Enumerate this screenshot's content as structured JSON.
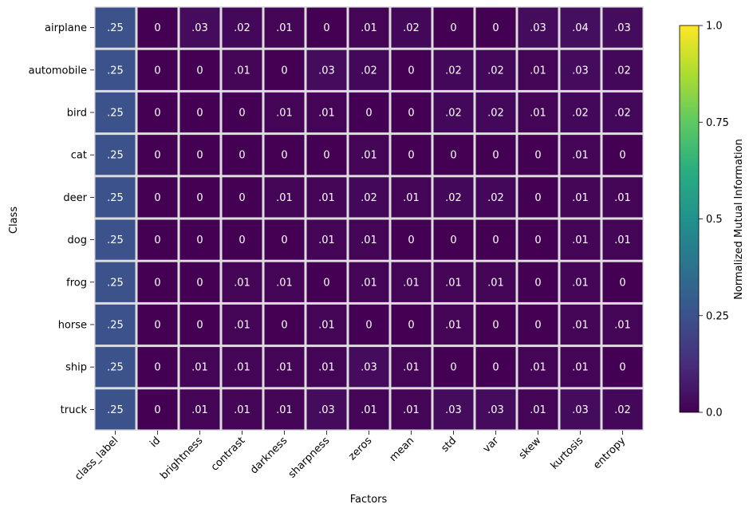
{
  "chart_data": {
    "type": "heatmap",
    "xlabel": "Factors",
    "ylabel": "Class",
    "x": [
      "class_label",
      "id",
      "brightness",
      "contrast",
      "darkness",
      "sharpness",
      "zeros",
      "mean",
      "std",
      "var",
      "skew",
      "kurtosis",
      "entropy"
    ],
    "y": [
      "airplane",
      "automobile",
      "bird",
      "cat",
      "deer",
      "dog",
      "frog",
      "horse",
      "ship",
      "truck"
    ],
    "values": [
      [
        0.25,
        0,
        0.03,
        0.02,
        0.01,
        0,
        0.01,
        0.02,
        0,
        0,
        0.03,
        0.04,
        0.03
      ],
      [
        0.25,
        0,
        0,
        0.01,
        0,
        0.03,
        0.02,
        0,
        0.02,
        0.02,
        0.01,
        0.03,
        0.02
      ],
      [
        0.25,
        0,
        0,
        0,
        0.01,
        0.01,
        0,
        0,
        0.02,
        0.02,
        0.01,
        0.02,
        0.02
      ],
      [
        0.25,
        0,
        0,
        0,
        0,
        0,
        0.01,
        0,
        0,
        0,
        0,
        0.01,
        0
      ],
      [
        0.25,
        0,
        0,
        0,
        0.01,
        0.01,
        0.02,
        0.01,
        0.02,
        0.02,
        0,
        0.01,
        0.01
      ],
      [
        0.25,
        0,
        0,
        0,
        0,
        0.01,
        0.01,
        0,
        0,
        0,
        0,
        0.01,
        0.01
      ],
      [
        0.25,
        0,
        0,
        0.01,
        0.01,
        0,
        0.01,
        0.01,
        0.01,
        0.01,
        0,
        0.01,
        0
      ],
      [
        0.25,
        0,
        0,
        0.01,
        0,
        0.01,
        0,
        0,
        0.01,
        0,
        0,
        0.01,
        0.01
      ],
      [
        0.25,
        0,
        0.01,
        0.01,
        0.01,
        0.01,
        0.03,
        0.01,
        0,
        0,
        0.01,
        0.01,
        0
      ],
      [
        0.25,
        0,
        0.01,
        0.01,
        0.01,
        0.03,
        0.01,
        0.01,
        0.03,
        0.03,
        0.01,
        0.03,
        0.02
      ]
    ],
    "cell_labels": [
      [
        ".25",
        "0",
        ".03",
        ".02",
        ".01",
        "0",
        ".01",
        ".02",
        "0",
        "0",
        ".03",
        ".04",
        ".03"
      ],
      [
        ".25",
        "0",
        "0",
        ".01",
        "0",
        ".03",
        ".02",
        "0",
        ".02",
        ".02",
        ".01",
        ".03",
        ".02"
      ],
      [
        ".25",
        "0",
        "0",
        "0",
        ".01",
        ".01",
        "0",
        "0",
        ".02",
        ".02",
        ".01",
        ".02",
        ".02"
      ],
      [
        ".25",
        "0",
        "0",
        "0",
        "0",
        "0",
        ".01",
        "0",
        "0",
        "0",
        "0",
        ".01",
        "0"
      ],
      [
        ".25",
        "0",
        "0",
        "0",
        ".01",
        ".01",
        ".02",
        ".01",
        ".02",
        ".02",
        "0",
        ".01",
        ".01"
      ],
      [
        ".25",
        "0",
        "0",
        "0",
        "0",
        ".01",
        ".01",
        "0",
        "0",
        "0",
        "0",
        ".01",
        ".01"
      ],
      [
        ".25",
        "0",
        "0",
        ".01",
        ".01",
        "0",
        ".01",
        ".01",
        ".01",
        ".01",
        "0",
        ".01",
        "0"
      ],
      [
        ".25",
        "0",
        "0",
        ".01",
        "0",
        ".01",
        "0",
        "0",
        ".01",
        "0",
        "0",
        ".01",
        ".01"
      ],
      [
        ".25",
        "0",
        ".01",
        ".01",
        ".01",
        ".01",
        ".03",
        ".01",
        "0",
        "0",
        ".01",
        ".01",
        "0"
      ],
      [
        ".25",
        "0",
        ".01",
        ".01",
        ".01",
        ".03",
        ".01",
        ".01",
        ".03",
        ".03",
        ".01",
        ".03",
        ".02"
      ]
    ],
    "colorbar": {
      "label": "Normalized Mutual Information",
      "range": [
        0,
        1
      ],
      "ticks": [
        0.0,
        0.25,
        0.5,
        0.75,
        1.0
      ],
      "tick_labels": [
        "0.0",
        "0.25",
        "0.5",
        "0.75",
        "1.0"
      ],
      "colormap": "viridis"
    },
    "grid": false,
    "cell_text_color": "#ffffff",
    "cell_border_color": "#dddddd"
  }
}
